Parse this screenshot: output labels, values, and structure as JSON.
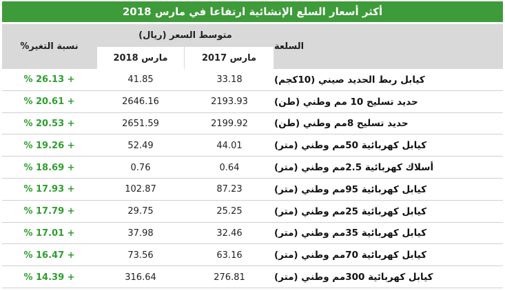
{
  "title": "أكثر أسعار السلع الإنشائية ارتفاعا في مارس 2018",
  "header": {
    "commodity": "السلعة",
    "avg_price": "متوسط السعر (ريال)",
    "march_2017": "مارس 2017",
    "march_2018": "مارس 2018",
    "change": "نسبة التغير%"
  },
  "table": {
    "rows": [
      [
        "كيابل ربط الحديد صيني (10كجم)",
        33.18,
        41.85,
        "% 26.13 +"
      ],
      [
        "حديد تسليح 10 مم وطني (طن)",
        2193.93,
        2646.16,
        "% 20.61 +"
      ],
      [
        "حديد تسليح 8مم وطني (طن)",
        2199.92,
        2651.59,
        "% 20.53 +"
      ],
      [
        "كيابل كهربائية 50مم وطني (متر)",
        44.01,
        52.49,
        "% 19.26 +"
      ],
      [
        "أسلاك كهربائية 2.5مم وطني (متر)",
        0.64,
        0.76,
        "% 18.69 +"
      ],
      [
        "كيابل كهربائية 95مم وطني (متر)",
        87.23,
        102.87,
        "% 17.93 +"
      ],
      [
        "كيابل كهربائية 25مم وطني (متر)",
        25.25,
        29.75,
        "% 17.79 +"
      ],
      [
        "كيابل كهربائية 35مم وطني (متر)",
        32.46,
        37.98,
        "% 17.01 +"
      ],
      [
        "كيابل كهربائية 70مم وطني (متر)",
        63.16,
        73.56,
        "% 16.47 +"
      ],
      [
        "كيابل كهربائية 300مم وطني (متر)",
        276.81,
        316.64,
        "% 14.39 +"
      ]
    ]
  }
}
